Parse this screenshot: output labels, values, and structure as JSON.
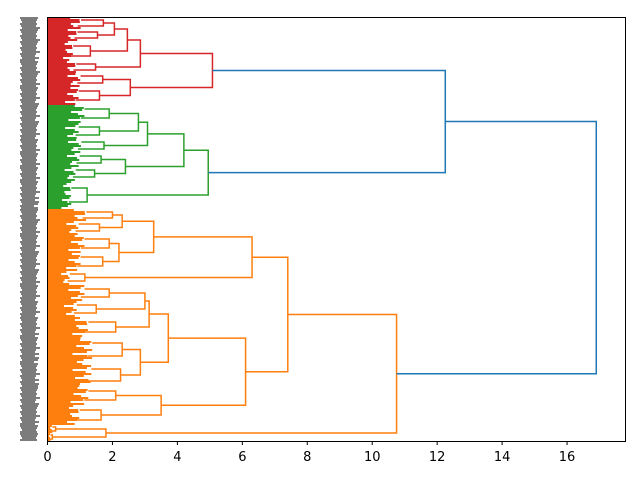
{
  "chart_data": {
    "type": "dendrogram",
    "orientation": "left",
    "title": "",
    "xlabel": "",
    "ylabel": "",
    "xlim": [
      0,
      17.8
    ],
    "xticks": [
      "0",
      "2",
      "4",
      "6",
      "8",
      "10",
      "12",
      "14",
      "16"
    ],
    "xtick_values": [
      0,
      2,
      4,
      6,
      8,
      10,
      12,
      14,
      16
    ],
    "leaf_labels_legible": false,
    "colors": {
      "above_threshold": "#1f77b4",
      "red": "#d62728",
      "green": "#2ca02c",
      "orange": "#ff7f0e"
    },
    "tree": {
      "h": 16.9,
      "color": "above_threshold",
      "c": [
        {
          "h": 12.25,
          "color": "above_threshold",
          "c": [
            {
              "h": 5.08,
              "color": "red",
              "c": [
                {
                  "h": 2.86,
                  "c": [
                    {
                      "h": 2.46,
                      "c": [
                        {
                          "h": 2.06,
                          "c": [
                            {
                              "n": 6,
                              "h": 1.72
                            },
                            {
                              "n": 6,
                              "h": 1.54
                            }
                          ]
                        },
                        {
                          "n": 10,
                          "h": 1.32
                        }
                      ]
                    },
                    {
                      "n": 6,
                      "h": 1.48
                    }
                  ]
                },
                {
                  "h": 2.55,
                  "c": [
                    {
                      "n": 7,
                      "h": 1.7
                    },
                    {
                      "n": 9,
                      "h": 1.6
                    }
                  ]
                }
              ]
            },
            {
              "h": 4.95,
              "color": "green",
              "c": [
                {
                  "h": 4.2,
                  "c": [
                    {
                      "h": 3.08,
                      "c": [
                        {
                          "h": 2.8,
                          "c": [
                            {
                              "n": 9,
                              "h": 1.9
                            },
                            {
                              "n": 8,
                              "h": 1.6
                            }
                          ]
                        },
                        {
                          "n": 7,
                          "h": 1.74
                        }
                      ]
                    },
                    {
                      "h": 2.4,
                      "c": [
                        {
                          "n": 7,
                          "h": 1.65
                        },
                        {
                          "n": 7,
                          "h": 1.45
                        }
                      ]
                    }
                  ]
                },
                {
                  "n": 14,
                  "h": 1.22
                }
              ]
            }
          ]
        },
        {
          "h": 10.75,
          "color": "orange",
          "c": [
            {
              "h": 7.4,
              "c": [
                {
                  "h": 6.3,
                  "c": [
                    {
                      "h": 3.27,
                      "c": [
                        {
                          "h": 2.3,
                          "c": [
                            {
                              "n": 6,
                              "h": 2.0
                            },
                            {
                              "n": 7,
                              "h": 1.6
                            }
                          ]
                        },
                        {
                          "h": 2.2,
                          "c": [
                            {
                              "n": 9,
                              "h": 1.9
                            },
                            {
                              "n": 9,
                              "h": 1.7
                            }
                          ]
                        }
                      ]
                    },
                    {
                      "n": 7,
                      "h": 1.15
                    }
                  ]
                },
                {
                  "h": 6.1,
                  "c": [
                    {
                      "h": 3.72,
                      "c": [
                        {
                          "h": 3.13,
                          "c": [
                            {
                              "h": 3.0,
                              "c": [
                                {
                                  "n": 8,
                                  "h": 1.9
                                },
                                {
                                  "n": 8,
                                  "h": 1.5
                                }
                              ]
                            },
                            {
                              "n": 10,
                              "h": 2.1
                            }
                          ]
                        },
                        {
                          "h": 2.86,
                          "c": [
                            {
                              "n": 13,
                              "h": 2.3
                            },
                            {
                              "n": 12,
                              "h": 2.25
                            }
                          ]
                        }
                      ]
                    },
                    {
                      "h": 3.5,
                      "c": [
                        {
                          "n": 9,
                          "h": 2.1
                        },
                        {
                          "n": 10,
                          "h": 1.65
                        }
                      ]
                    }
                  ]
                }
              ]
            },
            {
              "h": 1.8,
              "c": [
                {
                  "n": 4,
                  "h": 0.25
                },
                {
                  "n": 4,
                  "h": 0.15
                }
              ]
            }
          ]
        }
      ]
    }
  }
}
